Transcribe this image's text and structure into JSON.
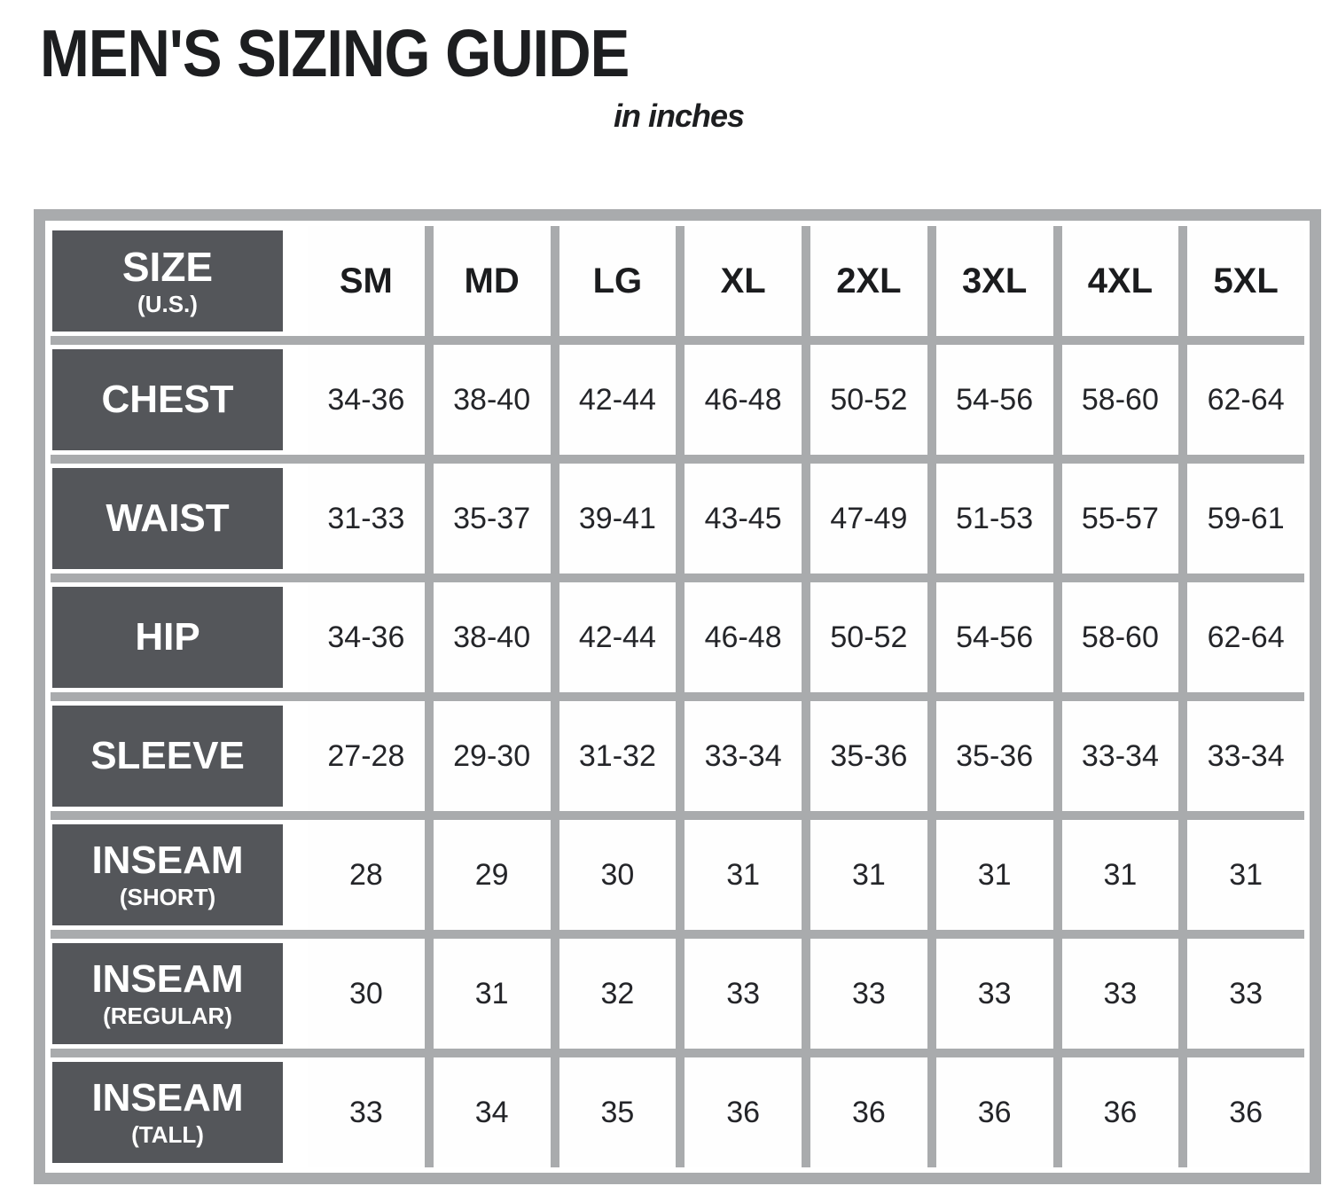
{
  "title": "MEN'S SIZING GUIDE",
  "subtitle": "in inches",
  "colors": {
    "frame_gray": "#a9abad",
    "label_box_bg": "#54565a",
    "label_box_text": "#ffffff",
    "cell_bg": "#fefefe",
    "text_dark": "#1d1e20"
  },
  "chart_data": {
    "type": "table",
    "title": "MEN'S SIZING GUIDE",
    "subtitle": "in inches",
    "units": "inches",
    "header": {
      "label": "SIZE",
      "label_sub": "(U.S.)"
    },
    "columns": [
      "SM",
      "MD",
      "LG",
      "XL",
      "2XL",
      "3XL",
      "4XL",
      "5XL"
    ],
    "rows": [
      {
        "label": "CHEST",
        "values": [
          "34-36",
          "38-40",
          "42-44",
          "46-48",
          "50-52",
          "54-56",
          "58-60",
          "62-64"
        ]
      },
      {
        "label": "WAIST",
        "values": [
          "31-33",
          "35-37",
          "39-41",
          "43-45",
          "47-49",
          "51-53",
          "55-57",
          "59-61"
        ]
      },
      {
        "label": "HIP",
        "values": [
          "34-36",
          "38-40",
          "42-44",
          "46-48",
          "50-52",
          "54-56",
          "58-60",
          "62-64"
        ]
      },
      {
        "label": "SLEEVE",
        "values": [
          "27-28",
          "29-30",
          "31-32",
          "33-34",
          "35-36",
          "35-36",
          "33-34",
          "33-34"
        ]
      },
      {
        "label": "INSEAM",
        "label_sub": "(SHORT)",
        "values": [
          "28",
          "29",
          "30",
          "31",
          "31",
          "31",
          "31",
          "31"
        ]
      },
      {
        "label": "INSEAM",
        "label_sub": "(REGULAR)",
        "values": [
          "30",
          "31",
          "32",
          "33",
          "33",
          "33",
          "33",
          "33"
        ]
      },
      {
        "label": "INSEAM",
        "label_sub": "(TALL)",
        "values": [
          "33",
          "34",
          "35",
          "36",
          "36",
          "36",
          "36",
          "36"
        ]
      }
    ]
  }
}
